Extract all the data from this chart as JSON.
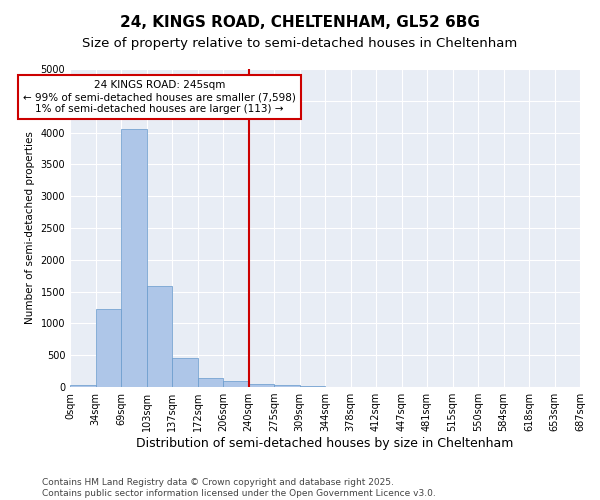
{
  "title1": "24, KINGS ROAD, CHELTENHAM, GL52 6BG",
  "title2": "Size of property relative to semi-detached houses in Cheltenham",
  "xlabel": "Distribution of semi-detached houses by size in Cheltenham",
  "ylabel": "Number of semi-detached properties",
  "bin_labels": [
    "0sqm",
    "34sqm",
    "69sqm",
    "103sqm",
    "137sqm",
    "172sqm",
    "206sqm",
    "240sqm",
    "275sqm",
    "309sqm",
    "344sqm",
    "378sqm",
    "412sqm",
    "447sqm",
    "481sqm",
    "515sqm",
    "550sqm",
    "584sqm",
    "618sqm",
    "653sqm",
    "687sqm"
  ],
  "bar_values": [
    30,
    1230,
    4050,
    1590,
    460,
    150,
    100,
    55,
    40,
    10,
    5,
    2,
    1,
    0,
    0,
    0,
    0,
    0,
    0,
    0
  ],
  "bar_color": "#aec6e8",
  "bar_edge_color": "#6699cc",
  "vline_x": 7.0,
  "vline_color": "#cc0000",
  "annotation_text": "24 KINGS ROAD: 245sqm\n← 99% of semi-detached houses are smaller (7,598)\n1% of semi-detached houses are larger (113) →",
  "annotation_box_color": "#cc0000",
  "ylim": [
    0,
    5000
  ],
  "yticks": [
    0,
    500,
    1000,
    1500,
    2000,
    2500,
    3000,
    3500,
    4000,
    4500,
    5000
  ],
  "background_color": "#e8edf5",
  "grid_color": "#ffffff",
  "footer": "Contains HM Land Registry data © Crown copyright and database right 2025.\nContains public sector information licensed under the Open Government Licence v3.0.",
  "title1_fontsize": 11,
  "title2_fontsize": 9.5,
  "xlabel_fontsize": 9,
  "ylabel_fontsize": 7.5,
  "tick_fontsize": 7,
  "footer_fontsize": 6.5
}
